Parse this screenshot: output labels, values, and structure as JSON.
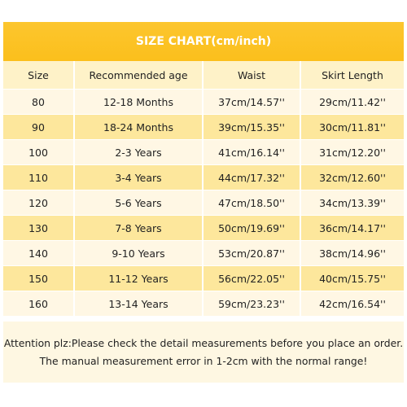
{
  "header": {
    "title": "SIZE CHART(cm/inch)"
  },
  "table": {
    "columns": [
      "Size",
      "Recommended age",
      "Waist",
      "Skirt Length"
    ],
    "rows": [
      [
        "80",
        "12-18 Months",
        "37cm/14.57''",
        "29cm/11.42''"
      ],
      [
        "90",
        "18-24 Months",
        "39cm/15.35''",
        "30cm/11.81''"
      ],
      [
        "100",
        "2-3 Years",
        "41cm/16.14''",
        "31cm/12.20''"
      ],
      [
        "110",
        "3-4 Years",
        "44cm/17.32''",
        "32cm/12.60''"
      ],
      [
        "120",
        "5-6 Years",
        "47cm/18.50''",
        "34cm/13.39''"
      ],
      [
        "130",
        "7-8 Years",
        "50cm/19.69''",
        "36cm/14.17''"
      ],
      [
        "140",
        "9-10 Years",
        "53cm/20.87''",
        "38cm/14.96''"
      ],
      [
        "150",
        "11-12 Years",
        "56cm/22.05''",
        "40cm/15.75''"
      ],
      [
        "160",
        "13-14 Years",
        "59cm/23.23''",
        "42cm/16.54''"
      ]
    ]
  },
  "note": {
    "lines": [
      "Attention plz:Please check the detail measurements before you place an order.",
      "The manual measurement error in 1-2cm with the normal range!"
    ]
  }
}
